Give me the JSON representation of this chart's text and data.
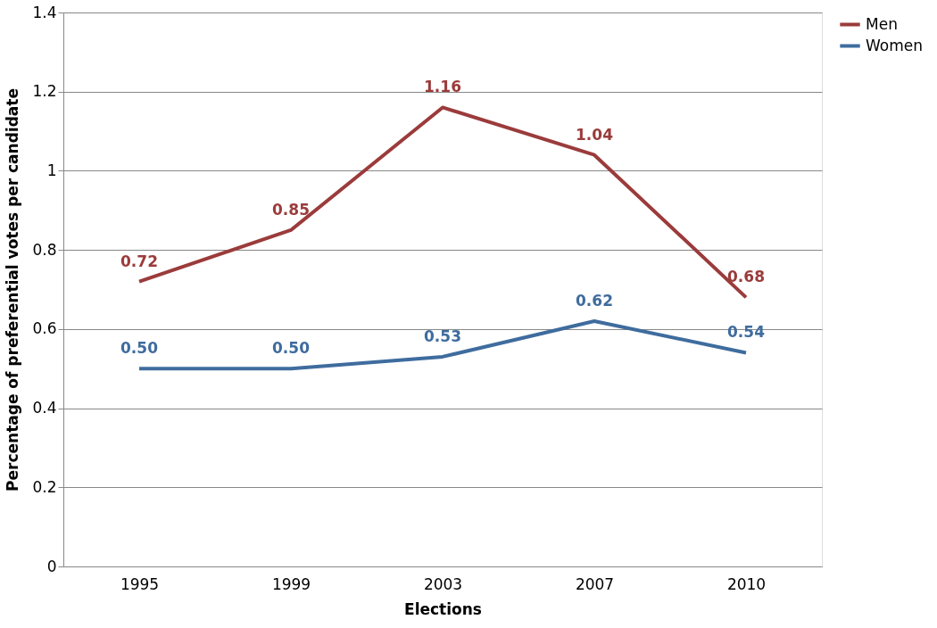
{
  "chart_data": {
    "type": "line",
    "xlabel": "Elections",
    "ylabel": "Percentage of preferential votes per candidate",
    "categories": [
      "1995",
      "1999",
      "2003",
      "2007",
      "2010"
    ],
    "series": [
      {
        "name": "Men",
        "color": "#9b3b3b",
        "values": [
          0.72,
          0.85,
          1.16,
          1.04,
          0.68
        ],
        "value_labels": [
          "0.72",
          "0.85",
          "1.16",
          "1.04",
          "0.68"
        ]
      },
      {
        "name": "Women",
        "color": "#3f6c9e",
        "values": [
          0.5,
          0.5,
          0.53,
          0.62,
          0.54
        ],
        "value_labels": [
          "0.50",
          "0.50",
          "0.53",
          "0.62",
          "0.54"
        ]
      }
    ],
    "ylim": [
      0,
      1.4
    ],
    "yticks": [
      {
        "value": 0,
        "label": "0"
      },
      0.2,
      0.4,
      0.6,
      0.8,
      {
        "value": 1,
        "label": "1"
      },
      1.2,
      1.4
    ],
    "grid": "y",
    "legend": "right",
    "marker": "none",
    "line_style": "solid"
  }
}
